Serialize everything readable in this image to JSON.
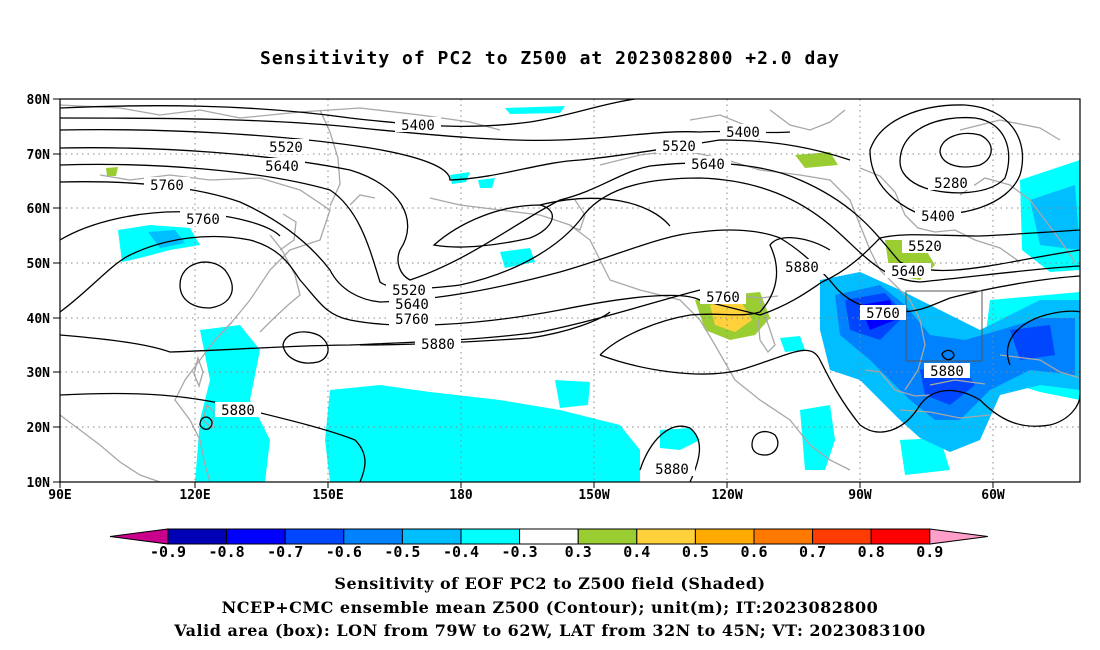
{
  "title": "Sensitivity of PC2 to Z500 at 2023082800 +2.0 day",
  "lat_labels": [
    "80N",
    "70N",
    "60N",
    "50N",
    "40N",
    "30N",
    "20N",
    "10N"
  ],
  "lon_labels": [
    "90E",
    "120E",
    "150E",
    "180",
    "150W",
    "120W",
    "90W",
    "60W"
  ],
  "contour_labels": [
    {
      "id": "c5400a",
      "text": "5400"
    },
    {
      "id": "c5520a",
      "text": "5520"
    },
    {
      "id": "c5640a",
      "text": "5640"
    },
    {
      "id": "c5760a",
      "text": "5760"
    },
    {
      "id": "c5760b",
      "text": "5760"
    },
    {
      "id": "c5520b",
      "text": "5520"
    },
    {
      "id": "c5640b",
      "text": "5640"
    },
    {
      "id": "c5760c",
      "text": "5760"
    },
    {
      "id": "c5880a",
      "text": "5880"
    },
    {
      "id": "c5520c",
      "text": "5520"
    },
    {
      "id": "c5640c",
      "text": "5640"
    },
    {
      "id": "c5400b",
      "text": "5400"
    },
    {
      "id": "c5760d",
      "text": "5760"
    },
    {
      "id": "c5880b",
      "text": "5880"
    },
    {
      "id": "c5280",
      "text": "5280"
    },
    {
      "id": "c5400c",
      "text": "5400"
    },
    {
      "id": "c5520d",
      "text": "5520"
    },
    {
      "id": "c5640d",
      "text": "5640"
    },
    {
      "id": "c5760e",
      "text": "5760"
    },
    {
      "id": "c5880c",
      "text": "5880"
    },
    {
      "id": "c5880d",
      "text": "5880"
    },
    {
      "id": "c5880e",
      "text": "5880"
    }
  ],
  "colorbar": {
    "colors": [
      "#c8008c",
      "#0000b4",
      "#0000ff",
      "#0046ff",
      "#0082ff",
      "#00beff",
      "#00ffff",
      "#ffffff",
      "#9acd32",
      "#ffd23c",
      "#ffaa00",
      "#ff7800",
      "#ff3c00",
      "#ff0000",
      "#ff9ec8"
    ],
    "labels": [
      "-0.9",
      "-0.8",
      "-0.7",
      "-0.6",
      "-0.5",
      "-0.4",
      "-0.3",
      "0.3",
      "0.4",
      "0.5",
      "0.6",
      "0.7",
      "0.8",
      "0.9"
    ]
  },
  "captions": {
    "line1": "Sensitivity of EOF PC2 to Z500 field (Shaded)",
    "line2": "NCEP+CMC ensemble mean Z500 (Contour); unit(m); IT:2023082800",
    "line3": "Valid area (box): LON from 79W to 62W, LAT from 32N to 45N; VT: 2023083100"
  }
}
